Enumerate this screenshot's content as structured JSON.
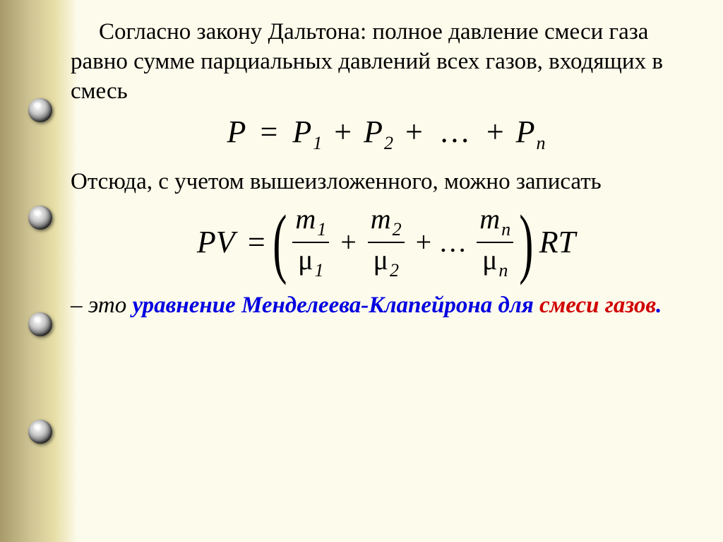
{
  "colors": {
    "page_bg": "#fdfbeb",
    "binder_dark": "#a89a6a",
    "binder_light": "#e7dea6",
    "text": "#000000",
    "accent_blue": "#0000e0",
    "accent_red": "#d00000"
  },
  "typography": {
    "body_fontsize_pt": 25,
    "formula_fontsize_pt": 33,
    "font_family": "Times New Roman"
  },
  "content": {
    "para1": "Согласно закону Дальтона: полное давление смеси газа равно сумме парциальных давлений всех газов, входящих в смесь",
    "formula1": {
      "lhs": "P",
      "eq": "=",
      "terms": [
        "P",
        "P",
        "P"
      ],
      "subs": [
        "1",
        "2",
        "n"
      ],
      "plus": "+",
      "dots": "…"
    },
    "para2": "Отсюда, с учетом вышеизложенного, можно записать",
    "formula2": {
      "lhs_P": "P",
      "lhs_V": "V",
      "eq": "=",
      "lparen": "(",
      "rparen": ")",
      "num_sym": "m",
      "den_sym": "μ",
      "subs": [
        "1",
        "2",
        "n"
      ],
      "plus": "+",
      "dots": "…",
      "rhs_R": "R",
      "rhs_T": "T"
    },
    "conclusion": {
      "dash": " – это ",
      "blue_part": "уравнение Менделеева-Клапейрона для ",
      "red_part": "смеси газов",
      "period": "."
    }
  }
}
